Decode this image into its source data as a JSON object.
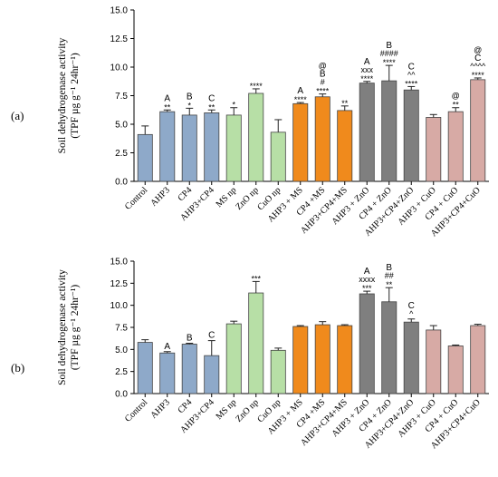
{
  "panel_labels": [
    "(a)",
    "(b)"
  ],
  "bar_colors": {
    "blue": "#8EA9C9",
    "green": "#B7DFA6",
    "orange": "#F08A1C",
    "gray": "#7F7F7F",
    "pink": "#D7AAA5",
    "edge": "#444444"
  },
  "chart_data": [
    {
      "type": "bar",
      "panel": "(a)",
      "title": "",
      "ylabel_line1": "Soil dehydrogenase activity",
      "ylabel_line2": "(TPF µg g⁻¹ 24hr⁻¹)",
      "ylim": [
        0,
        15
      ],
      "yticks": [
        "0.0",
        "2.5",
        "5.0",
        "7.5",
        "10.0",
        "12.5",
        "15.0"
      ],
      "categories": [
        "Control",
        "AHP3",
        "CP4",
        "AHP3+CP4",
        "MS np",
        "ZnO np",
        "CuO np",
        "AHP3 + MS",
        "CP4 +MS",
        "AHP3+CP4+MS",
        "AHP3 + ZnO",
        "CP4 + ZnO",
        "AHP3+CP4+ZnO",
        "AHP3 + CuO",
        "CP4 + CuO",
        "AHP3+CP4+CuO"
      ],
      "colors": [
        "blue",
        "blue",
        "blue",
        "blue",
        "green",
        "green",
        "green",
        "orange",
        "orange",
        "orange",
        "gray",
        "gray",
        "gray",
        "pink",
        "pink",
        "pink"
      ],
      "values": [
        4.1,
        6.1,
        5.8,
        6.0,
        5.8,
        7.7,
        4.3,
        6.8,
        7.4,
        6.2,
        8.6,
        8.8,
        8.0,
        5.6,
        6.1,
        8.9
      ],
      "errors": [
        0.75,
        0.15,
        0.6,
        0.25,
        0.65,
        0.4,
        1.1,
        0.1,
        0.25,
        0.4,
        0.15,
        1.35,
        0.3,
        0.25,
        0.35,
        0.15
      ],
      "annotations": [
        [],
        [
          "A",
          "**"
        ],
        [
          "B",
          "*"
        ],
        [
          "C",
          "**"
        ],
        [
          "*"
        ],
        [
          "****"
        ],
        [],
        [
          "A",
          "****"
        ],
        [
          "@",
          "B",
          "#",
          "****"
        ],
        [
          "**"
        ],
        [
          "A",
          "xxx",
          "****"
        ],
        [
          "B",
          "####",
          "****"
        ],
        [
          "C",
          "^^",
          "****"
        ],
        [],
        [
          "@",
          "**"
        ],
        [
          "@",
          "C",
          "^^^^",
          "****"
        ]
      ]
    },
    {
      "type": "bar",
      "panel": "(b)",
      "title": "",
      "ylabel_line1": "Soil dehydrogenase activity",
      "ylabel_line2": "(TPF µg g⁻¹ 24hr⁻¹)",
      "ylim": [
        0,
        15
      ],
      "yticks": [
        "0.0",
        "2.5",
        "5.0",
        "7.5",
        "10.0",
        "12.5",
        "15.0"
      ],
      "categories": [
        "Control",
        "AHP3",
        "CP4",
        "AHP3+CP4",
        "MS np",
        "ZnO np",
        "CuO np",
        "AHP3 + MS",
        "CP4 +MS",
        "AHP3+CP4+MS",
        "AHP3 + ZnO",
        "CP4 + ZnO",
        "AHP3+CP4+ZnO",
        "AHP3 + CuO",
        "CP4 + CuO",
        "AHP3+CP4+CuO"
      ],
      "colors": [
        "blue",
        "blue",
        "blue",
        "blue",
        "green",
        "green",
        "green",
        "orange",
        "orange",
        "orange",
        "gray",
        "gray",
        "gray",
        "pink",
        "pink",
        "pink"
      ],
      "values": [
        5.8,
        4.6,
        5.6,
        4.3,
        7.9,
        11.4,
        4.9,
        7.6,
        7.8,
        7.7,
        11.3,
        10.4,
        8.1,
        7.2,
        5.4,
        7.7
      ],
      "errors": [
        0.3,
        0.15,
        0.1,
        1.7,
        0.3,
        1.3,
        0.25,
        0.1,
        0.35,
        0.1,
        0.3,
        1.6,
        0.35,
        0.5,
        0.1,
        0.15
      ],
      "annotations": [
        [],
        [
          "A"
        ],
        [
          "B"
        ],
        [
          "C"
        ],
        [],
        [
          "***"
        ],
        [],
        [],
        [],
        [],
        [
          "A",
          "xxxx",
          "***"
        ],
        [
          "B",
          "##",
          "**"
        ],
        [
          "C",
          "^"
        ],
        [],
        [],
        []
      ]
    }
  ]
}
